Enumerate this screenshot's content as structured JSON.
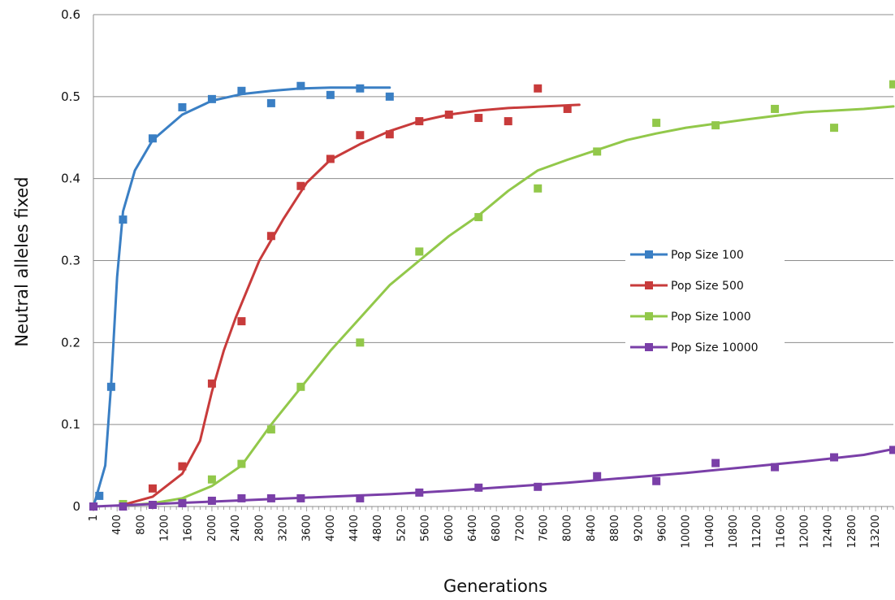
{
  "chart_data": {
    "type": "scatter",
    "title": "",
    "xlabel": "Generations",
    "ylabel": "Neutral alleles fixed",
    "xlim": [
      0,
      13500
    ],
    "ylim": [
      0,
      0.6
    ],
    "y_ticks": [
      "0",
      "0.1",
      "0.2",
      "0.3",
      "0.4",
      "0.5",
      "0.6"
    ],
    "x_ticks": [
      "1",
      "400",
      "800",
      "1200",
      "1600",
      "2000",
      "2400",
      "2800",
      "3200",
      "3600",
      "4000",
      "4400",
      "4800",
      "5200",
      "5600",
      "6000",
      "6400",
      "6800",
      "7200",
      "7600",
      "8000",
      "8400",
      "8800",
      "9200",
      "9600",
      "10000",
      "10400",
      "10800",
      "11200",
      "11600",
      "12000",
      "12400",
      "12800",
      "13200"
    ],
    "grid": "horizontal",
    "legend_position": "right-middle",
    "series": [
      {
        "name": "Pop Size 100",
        "color": "#3A7FC4",
        "points": [
          [
            1,
            0.0
          ],
          [
            100,
            0.013
          ],
          [
            300,
            0.146
          ],
          [
            500,
            0.35
          ],
          [
            1000,
            0.449
          ],
          [
            1500,
            0.487
          ],
          [
            2000,
            0.497
          ],
          [
            2500,
            0.507
          ],
          [
            3000,
            0.492
          ],
          [
            3500,
            0.513
          ],
          [
            4000,
            0.502
          ],
          [
            4500,
            0.51
          ],
          [
            5000,
            0.5
          ]
        ],
        "trend": [
          [
            1,
            0.0
          ],
          [
            200,
            0.05
          ],
          [
            300,
            0.15
          ],
          [
            400,
            0.28
          ],
          [
            500,
            0.36
          ],
          [
            700,
            0.41
          ],
          [
            1000,
            0.447
          ],
          [
            1500,
            0.478
          ],
          [
            2000,
            0.495
          ],
          [
            2500,
            0.503
          ],
          [
            3000,
            0.507
          ],
          [
            3500,
            0.51
          ],
          [
            4000,
            0.511
          ],
          [
            5000,
            0.511
          ]
        ]
      },
      {
        "name": "Pop Size 500",
        "color": "#C83B3B",
        "points": [
          [
            500,
            0.002
          ],
          [
            1000,
            0.022
          ],
          [
            1500,
            0.049
          ],
          [
            2000,
            0.15
          ],
          [
            2500,
            0.226
          ],
          [
            3000,
            0.33
          ],
          [
            3500,
            0.391
          ],
          [
            4000,
            0.424
          ],
          [
            4500,
            0.453
          ],
          [
            5000,
            0.454
          ],
          [
            5500,
            0.47
          ],
          [
            6000,
            0.478
          ],
          [
            6500,
            0.474
          ],
          [
            7000,
            0.47
          ],
          [
            7500,
            0.51
          ],
          [
            8000,
            0.485
          ]
        ],
        "trend": [
          [
            500,
            0.002
          ],
          [
            1000,
            0.012
          ],
          [
            1500,
            0.04
          ],
          [
            1800,
            0.08
          ],
          [
            2000,
            0.14
          ],
          [
            2200,
            0.19
          ],
          [
            2400,
            0.23
          ],
          [
            2800,
            0.3
          ],
          [
            3200,
            0.35
          ],
          [
            3600,
            0.395
          ],
          [
            4000,
            0.423
          ],
          [
            4500,
            0.442
          ],
          [
            5000,
            0.458
          ],
          [
            5500,
            0.47
          ],
          [
            6000,
            0.478
          ],
          [
            6500,
            0.483
          ],
          [
            7000,
            0.486
          ],
          [
            8200,
            0.49
          ]
        ]
      },
      {
        "name": "Pop Size 1000",
        "color": "#92C84A",
        "points": [
          [
            500,
            0.003
          ],
          [
            1500,
            0.005
          ],
          [
            2000,
            0.033
          ],
          [
            2500,
            0.052
          ],
          [
            3000,
            0.094
          ],
          [
            3500,
            0.146
          ],
          [
            4500,
            0.2
          ],
          [
            5500,
            0.311
          ],
          [
            6500,
            0.353
          ],
          [
            7500,
            0.388
          ],
          [
            8500,
            0.433
          ],
          [
            9500,
            0.468
          ],
          [
            10500,
            0.465
          ],
          [
            11500,
            0.485
          ],
          [
            12500,
            0.462
          ],
          [
            13500,
            0.515
          ]
        ],
        "trend": [
          [
            500,
            0.001
          ],
          [
            1000,
            0.004
          ],
          [
            1500,
            0.01
          ],
          [
            2000,
            0.025
          ],
          [
            2500,
            0.05
          ],
          [
            3000,
            0.1
          ],
          [
            3500,
            0.145
          ],
          [
            4000,
            0.19
          ],
          [
            4500,
            0.23
          ],
          [
            5000,
            0.27
          ],
          [
            5500,
            0.3
          ],
          [
            6000,
            0.33
          ],
          [
            6500,
            0.355
          ],
          [
            7000,
            0.385
          ],
          [
            7500,
            0.41
          ],
          [
            8000,
            0.423
          ],
          [
            8500,
            0.435
          ],
          [
            9000,
            0.447
          ],
          [
            9500,
            0.455
          ],
          [
            10000,
            0.462
          ],
          [
            11000,
            0.472
          ],
          [
            12000,
            0.481
          ],
          [
            13000,
            0.485
          ],
          [
            13500,
            0.488
          ]
        ]
      },
      {
        "name": "Pop Size 10000",
        "color": "#7A3FA8",
        "points": [
          [
            1,
            0.0
          ],
          [
            500,
            0.0
          ],
          [
            1000,
            0.002
          ],
          [
            1500,
            0.004
          ],
          [
            2000,
            0.007
          ],
          [
            2500,
            0.01
          ],
          [
            3000,
            0.01
          ],
          [
            3500,
            0.01
          ],
          [
            4500,
            0.01
          ],
          [
            5500,
            0.017
          ],
          [
            6500,
            0.023
          ],
          [
            7500,
            0.024
          ],
          [
            8500,
            0.037
          ],
          [
            9500,
            0.031
          ],
          [
            10500,
            0.053
          ],
          [
            11500,
            0.048
          ],
          [
            12500,
            0.06
          ],
          [
            13500,
            0.069
          ]
        ],
        "trend": [
          [
            1,
            0.0
          ],
          [
            1000,
            0.003
          ],
          [
            2000,
            0.006
          ],
          [
            3000,
            0.009
          ],
          [
            4000,
            0.012
          ],
          [
            5000,
            0.015
          ],
          [
            6000,
            0.019
          ],
          [
            7000,
            0.024
          ],
          [
            8000,
            0.029
          ],
          [
            9000,
            0.035
          ],
          [
            10000,
            0.041
          ],
          [
            11000,
            0.048
          ],
          [
            12000,
            0.055
          ],
          [
            13000,
            0.063
          ],
          [
            13500,
            0.07
          ]
        ]
      }
    ]
  }
}
